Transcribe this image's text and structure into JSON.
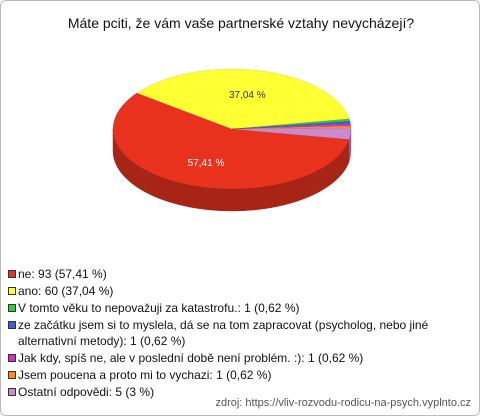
{
  "chart_data": {
    "type": "pie",
    "title": "Máte pciti, že vám vaše partnerské vztahy nevycházejí?",
    "categories": [
      "ne: 93 (57,41 %)",
      "ano: 60 (37,04 %)",
      "V tomto věku to nepovažuji za katastrofu.: 1 (0,62 %)",
      "ze začátku jsem si to myslela, dá se na tom zapracovat (psycholog, nebo jiné alternativní metody): 1 (0,62 %)",
      "Jak kdy, spíš ne, ale v poslední době není problém. :): 1 (0,62 %)",
      "Jsem poucena a proto mi to vychazi: 1 (0,62 %)",
      "Ostatní odpovědi: 5 (3 %)"
    ],
    "values": [
      57.41,
      37.04,
      0.62,
      0.62,
      0.62,
      0.62,
      3
    ],
    "value_labels": [
      "57,41 %",
      "37,04 %",
      null,
      null,
      null,
      null,
      null
    ],
    "colors": [
      "#e8321e",
      "#ffff33",
      "#33cc33",
      "#3366cc",
      "#cc33cc",
      "#ff8c1a",
      "#cc88cc"
    ],
    "source": "zdroj: https://vliv-rozvodu-rodicu-na-psych.vyplnto.cz"
  }
}
